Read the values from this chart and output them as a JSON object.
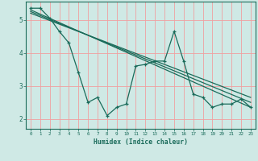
{
  "background_color": "#cfe9e5",
  "grid_color": "#f0a0a0",
  "line_color": "#1a6b5a",
  "xlabel": "Humidex (Indice chaleur)",
  "xlim": [
    -0.5,
    23.5
  ],
  "ylim": [
    1.7,
    5.55
  ],
  "yticks": [
    2,
    3,
    4,
    5
  ],
  "xticks": [
    0,
    1,
    2,
    3,
    4,
    5,
    6,
    7,
    8,
    9,
    10,
    11,
    12,
    13,
    14,
    15,
    16,
    17,
    18,
    19,
    20,
    21,
    22,
    23
  ],
  "series1": {
    "x": [
      0,
      1,
      2,
      3,
      4,
      5,
      6,
      7,
      8,
      9,
      10,
      11,
      12,
      13,
      14,
      15,
      16,
      17,
      18,
      19,
      20,
      21,
      22,
      23
    ],
    "y": [
      5.35,
      5.35,
      5.05,
      4.65,
      4.3,
      3.4,
      2.5,
      2.65,
      2.1,
      2.35,
      2.45,
      3.6,
      3.65,
      3.75,
      3.75,
      4.65,
      3.75,
      2.75,
      2.65,
      2.35,
      2.45,
      2.45,
      2.6,
      2.35
    ]
  },
  "series2_line": {
    "x": [
      0,
      23
    ],
    "y": [
      5.3,
      2.35
    ]
  },
  "series3_line": {
    "x": [
      0,
      23
    ],
    "y": [
      5.25,
      2.5
    ]
  },
  "series4_line": {
    "x": [
      0,
      23
    ],
    "y": [
      5.2,
      2.65
    ]
  }
}
